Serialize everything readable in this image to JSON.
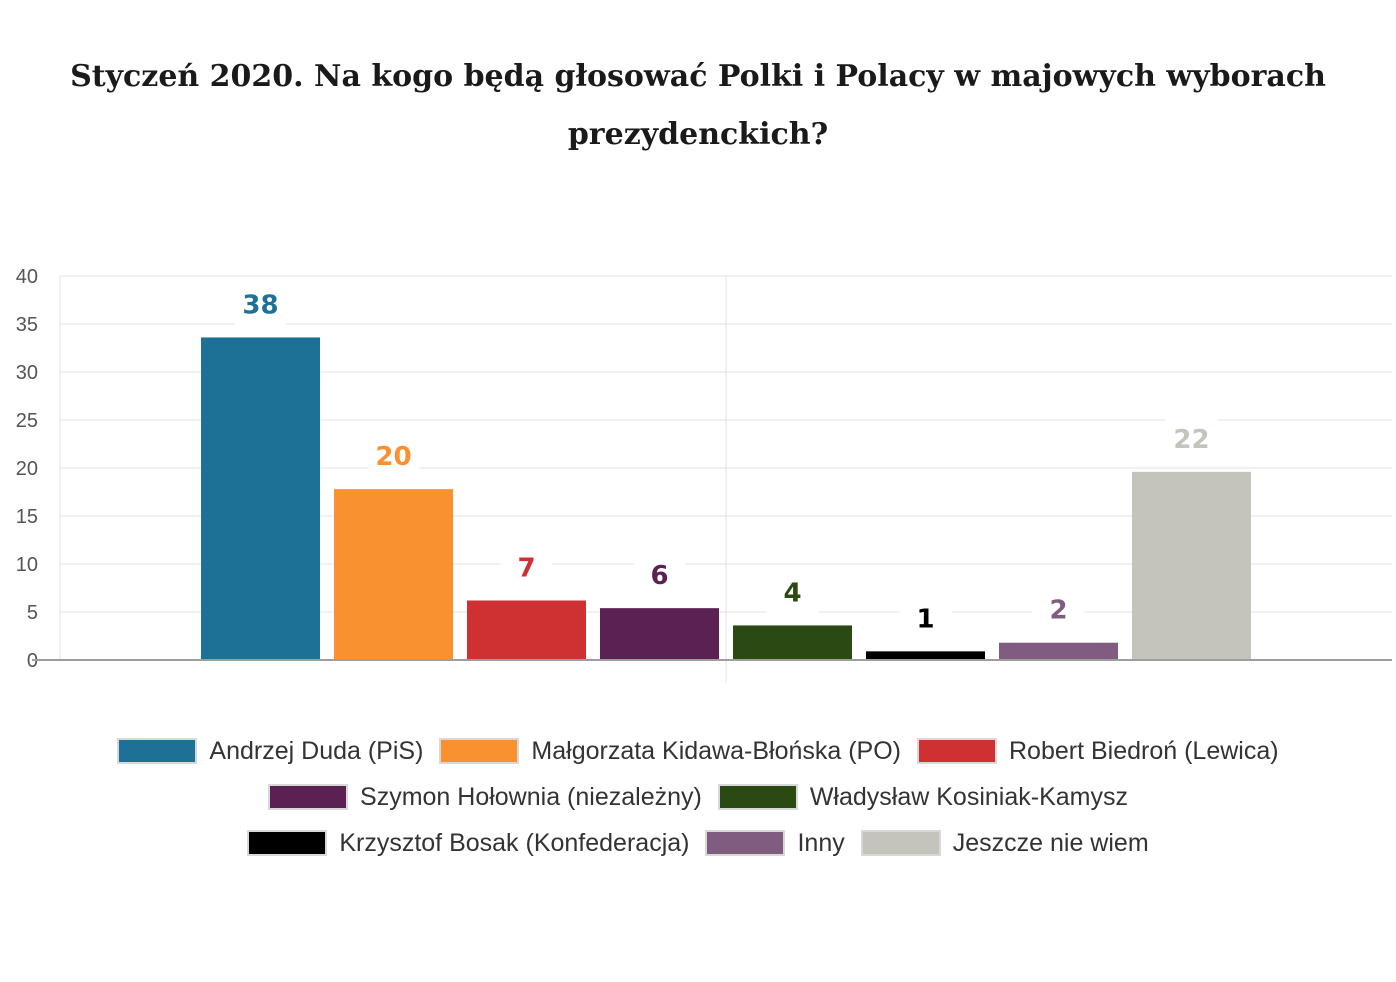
{
  "chart_data": {
    "type": "bar",
    "title": "Styczeń 2020. Na kogo będą głosować Polki i Polacy w majowych wyborach prezydenckich?",
    "xlabel": "",
    "ylabel": "",
    "ylim": [
      0,
      40
    ],
    "yticks": [
      0,
      5,
      10,
      15,
      20,
      25,
      30,
      35,
      40
    ],
    "grid": true,
    "legend_position": "bottom",
    "series": [
      {
        "name": "Andrzej Duda (PiS)",
        "value": 33.6,
        "label": "38",
        "color": "#1d7196"
      },
      {
        "name": "Małgorzata Kidawa-Błońska (PO)",
        "value": 17.8,
        "label": "20",
        "color": "#fa9130"
      },
      {
        "name": "Robert Biedroń (Lewica)",
        "value": 6.2,
        "label": "7",
        "color": "#cf3133"
      },
      {
        "name": "Szymon Hołownia (niezależny)",
        "value": 5.4,
        "label": "6",
        "color": "#5b2152"
      },
      {
        "name": "Władysław Kosiniak-Kamysz",
        "value": 3.6,
        "label": "4",
        "color": "#2b4a12"
      },
      {
        "name": "Krzysztof Bosak (Konfederacja)",
        "value": 0.9,
        "label": "1",
        "color": "#000000"
      },
      {
        "name": "Inny",
        "value": 1.8,
        "label": "2",
        "color": "#7f5c80"
      },
      {
        "name": "Jeszcze nie wiem",
        "value": 19.6,
        "label": "22",
        "color": "#c4c4bc"
      }
    ]
  }
}
